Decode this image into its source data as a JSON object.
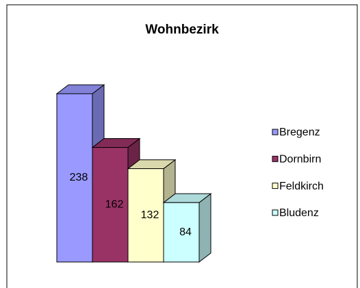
{
  "chart_data": {
    "type": "bar3d",
    "title": "Wohnbezirk",
    "series": [
      {
        "name": "Bregenz",
        "color": "#9999ff",
        "values": [
          238
        ]
      },
      {
        "name": "Dornbirn",
        "color": "#993366",
        "values": [
          162
        ]
      },
      {
        "name": "Feldkirch",
        "color": "#ffffcc",
        "values": [
          132
        ]
      },
      {
        "name": "Bludenz",
        "color": "#ccffff",
        "values": [
          84
        ]
      }
    ],
    "legend": "right"
  }
}
